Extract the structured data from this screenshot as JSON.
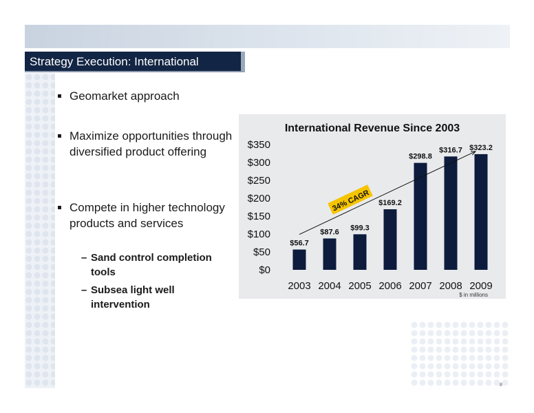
{
  "slide": {
    "title": "Strategy Execution: International",
    "page_number": "8",
    "bullets": [
      {
        "text": "Geomarket approach"
      },
      {
        "text": "Maximize opportunities through diversified product offering"
      },
      {
        "text": "Compete in higher technology products and services"
      }
    ],
    "sub_bullets": [
      {
        "dash": "–",
        "text": "Sand control completion tools"
      },
      {
        "dash": "–",
        "text": "Subsea light well intervention"
      }
    ]
  },
  "chart_data": {
    "type": "bar",
    "title": "International Revenue Since 2003",
    "categories": [
      "2003",
      "2004",
      "2005",
      "2006",
      "2007",
      "2008",
      "2009"
    ],
    "values": [
      56.7,
      87.6,
      99.3,
      169.2,
      298.8,
      316.7,
      323.2
    ],
    "data_labels": [
      "$56.7",
      "$87.6",
      "$99.3",
      "$169.2",
      "$298.8",
      "$316.7",
      "$323.2"
    ],
    "y_ticks": [
      "$0",
      "$50",
      "$100",
      "$150",
      "$200",
      "$250",
      "$300",
      "$350"
    ],
    "y_tick_values": [
      0,
      50,
      100,
      150,
      200,
      250,
      300,
      350
    ],
    "ylim": [
      0,
      350
    ],
    "note": "$ in millions",
    "annotation": "34% CAGR",
    "bar_color": "#0d1b3d",
    "annotation_color": "#f5c400",
    "grid": false,
    "legend": false
  }
}
